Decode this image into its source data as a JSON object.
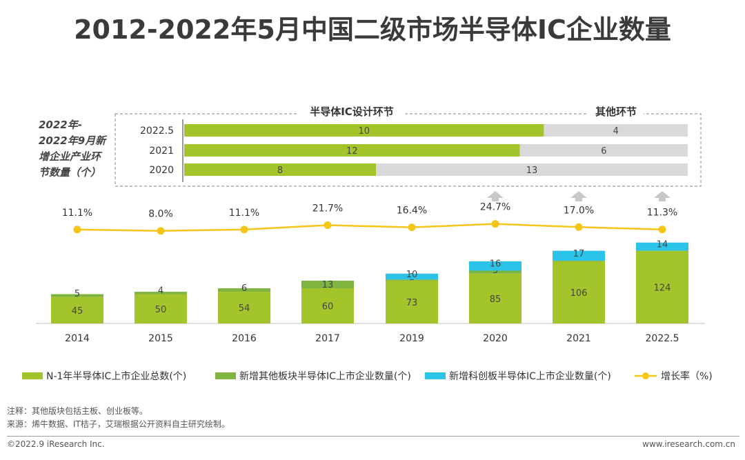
{
  "title": "2012-2022年5月中国二级市场半导体IC企业数量",
  "chart_data": [
    {
      "type": "bar",
      "subtype": "stacked-horizontal",
      "title": "2022年-2022年9月新增企业产业环节数量（个）",
      "title_lines": [
        "2022年-",
        "2022年9月新",
        "增企业产业环",
        "节数量（个）"
      ],
      "header_labels": [
        "半导体IC设计环节",
        "其他环节"
      ],
      "categories": [
        "2022.5",
        "2021",
        "2020"
      ],
      "series": [
        {
          "name": "半导体IC设计环节",
          "values": [
            10,
            12,
            8
          ],
          "color": "#a4c42b"
        },
        {
          "name": "其他环节",
          "values": [
            4,
            6,
            13
          ],
          "color": "#d9d9d9"
        }
      ]
    },
    {
      "type": "bar",
      "subtype": "stacked-with-line",
      "categories": [
        "2014",
        "2015",
        "2016",
        "2017",
        "2019",
        "2020",
        "2021",
        "2022.5"
      ],
      "series": [
        {
          "name": "N-1年半导体IC上市企业总数(个)",
          "values": [
            45,
            50,
            54,
            60,
            73,
            85,
            106,
            124
          ],
          "color": "#a4c42b"
        },
        {
          "name": "新增其他板块半导体IC上市企业数量(个)",
          "values": [
            5,
            4,
            6,
            13,
            2,
            5,
            1,
            0
          ],
          "color": "#7fb441"
        },
        {
          "name": "新增科创板半导体IC上市企业数量(个)",
          "values": [
            null,
            null,
            null,
            null,
            10,
            16,
            17,
            14
          ],
          "color": "#2bc3e8"
        }
      ],
      "line": {
        "name": "增长率（%)",
        "values": [
          11.1,
          8.0,
          11.1,
          21.7,
          16.4,
          24.7,
          17.0,
          11.3
        ],
        "labels": [
          "11.1%",
          "8.0%",
          "11.1%",
          "21.7%",
          "16.4%",
          "24.7%",
          "17.0%",
          "11.3%"
        ],
        "color": "#f5c518"
      },
      "legend_position": "bottom"
    }
  ],
  "footnotes": {
    "note": "注释：其他版块包括主板、创业板等。",
    "source": "来源：烯牛数据、IT桔子，艾瑞根据公开资料自主研究绘制。"
  },
  "footer": {
    "copyright": "©2022.9 iResearch Inc.",
    "website": "www.iresearch.com.cn"
  }
}
